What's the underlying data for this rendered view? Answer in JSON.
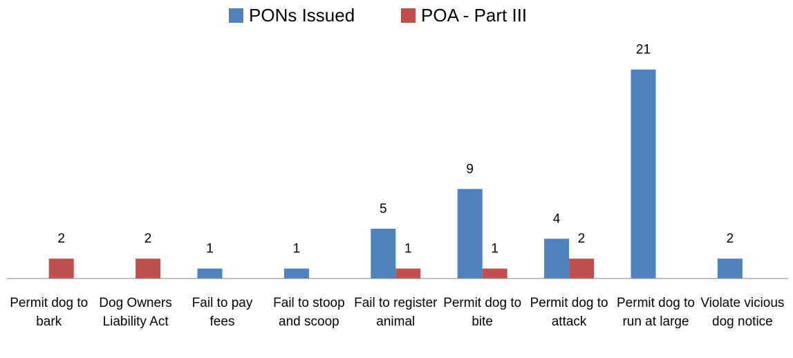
{
  "chart_data": {
    "type": "bar",
    "categories": [
      "Permit dog to bark",
      "Dog Owners Liability Act",
      "Fail to pay fees",
      "Fail to stoop and scoop",
      "Fail to register animal",
      "Permit dog to bite",
      "Permit dog to attack",
      "Permit dog to run at large",
      "Violate vicious dog notice"
    ],
    "series": [
      {
        "name": "PONs Issued",
        "color": "#4f81bd",
        "values": [
          null,
          null,
          1,
          1,
          5,
          9,
          4,
          21,
          2
        ]
      },
      {
        "name": "POA - Part III",
        "color": "#c0504d",
        "values": [
          2,
          2,
          null,
          null,
          1,
          1,
          2,
          null,
          null
        ]
      }
    ],
    "legend": "top"
  }
}
